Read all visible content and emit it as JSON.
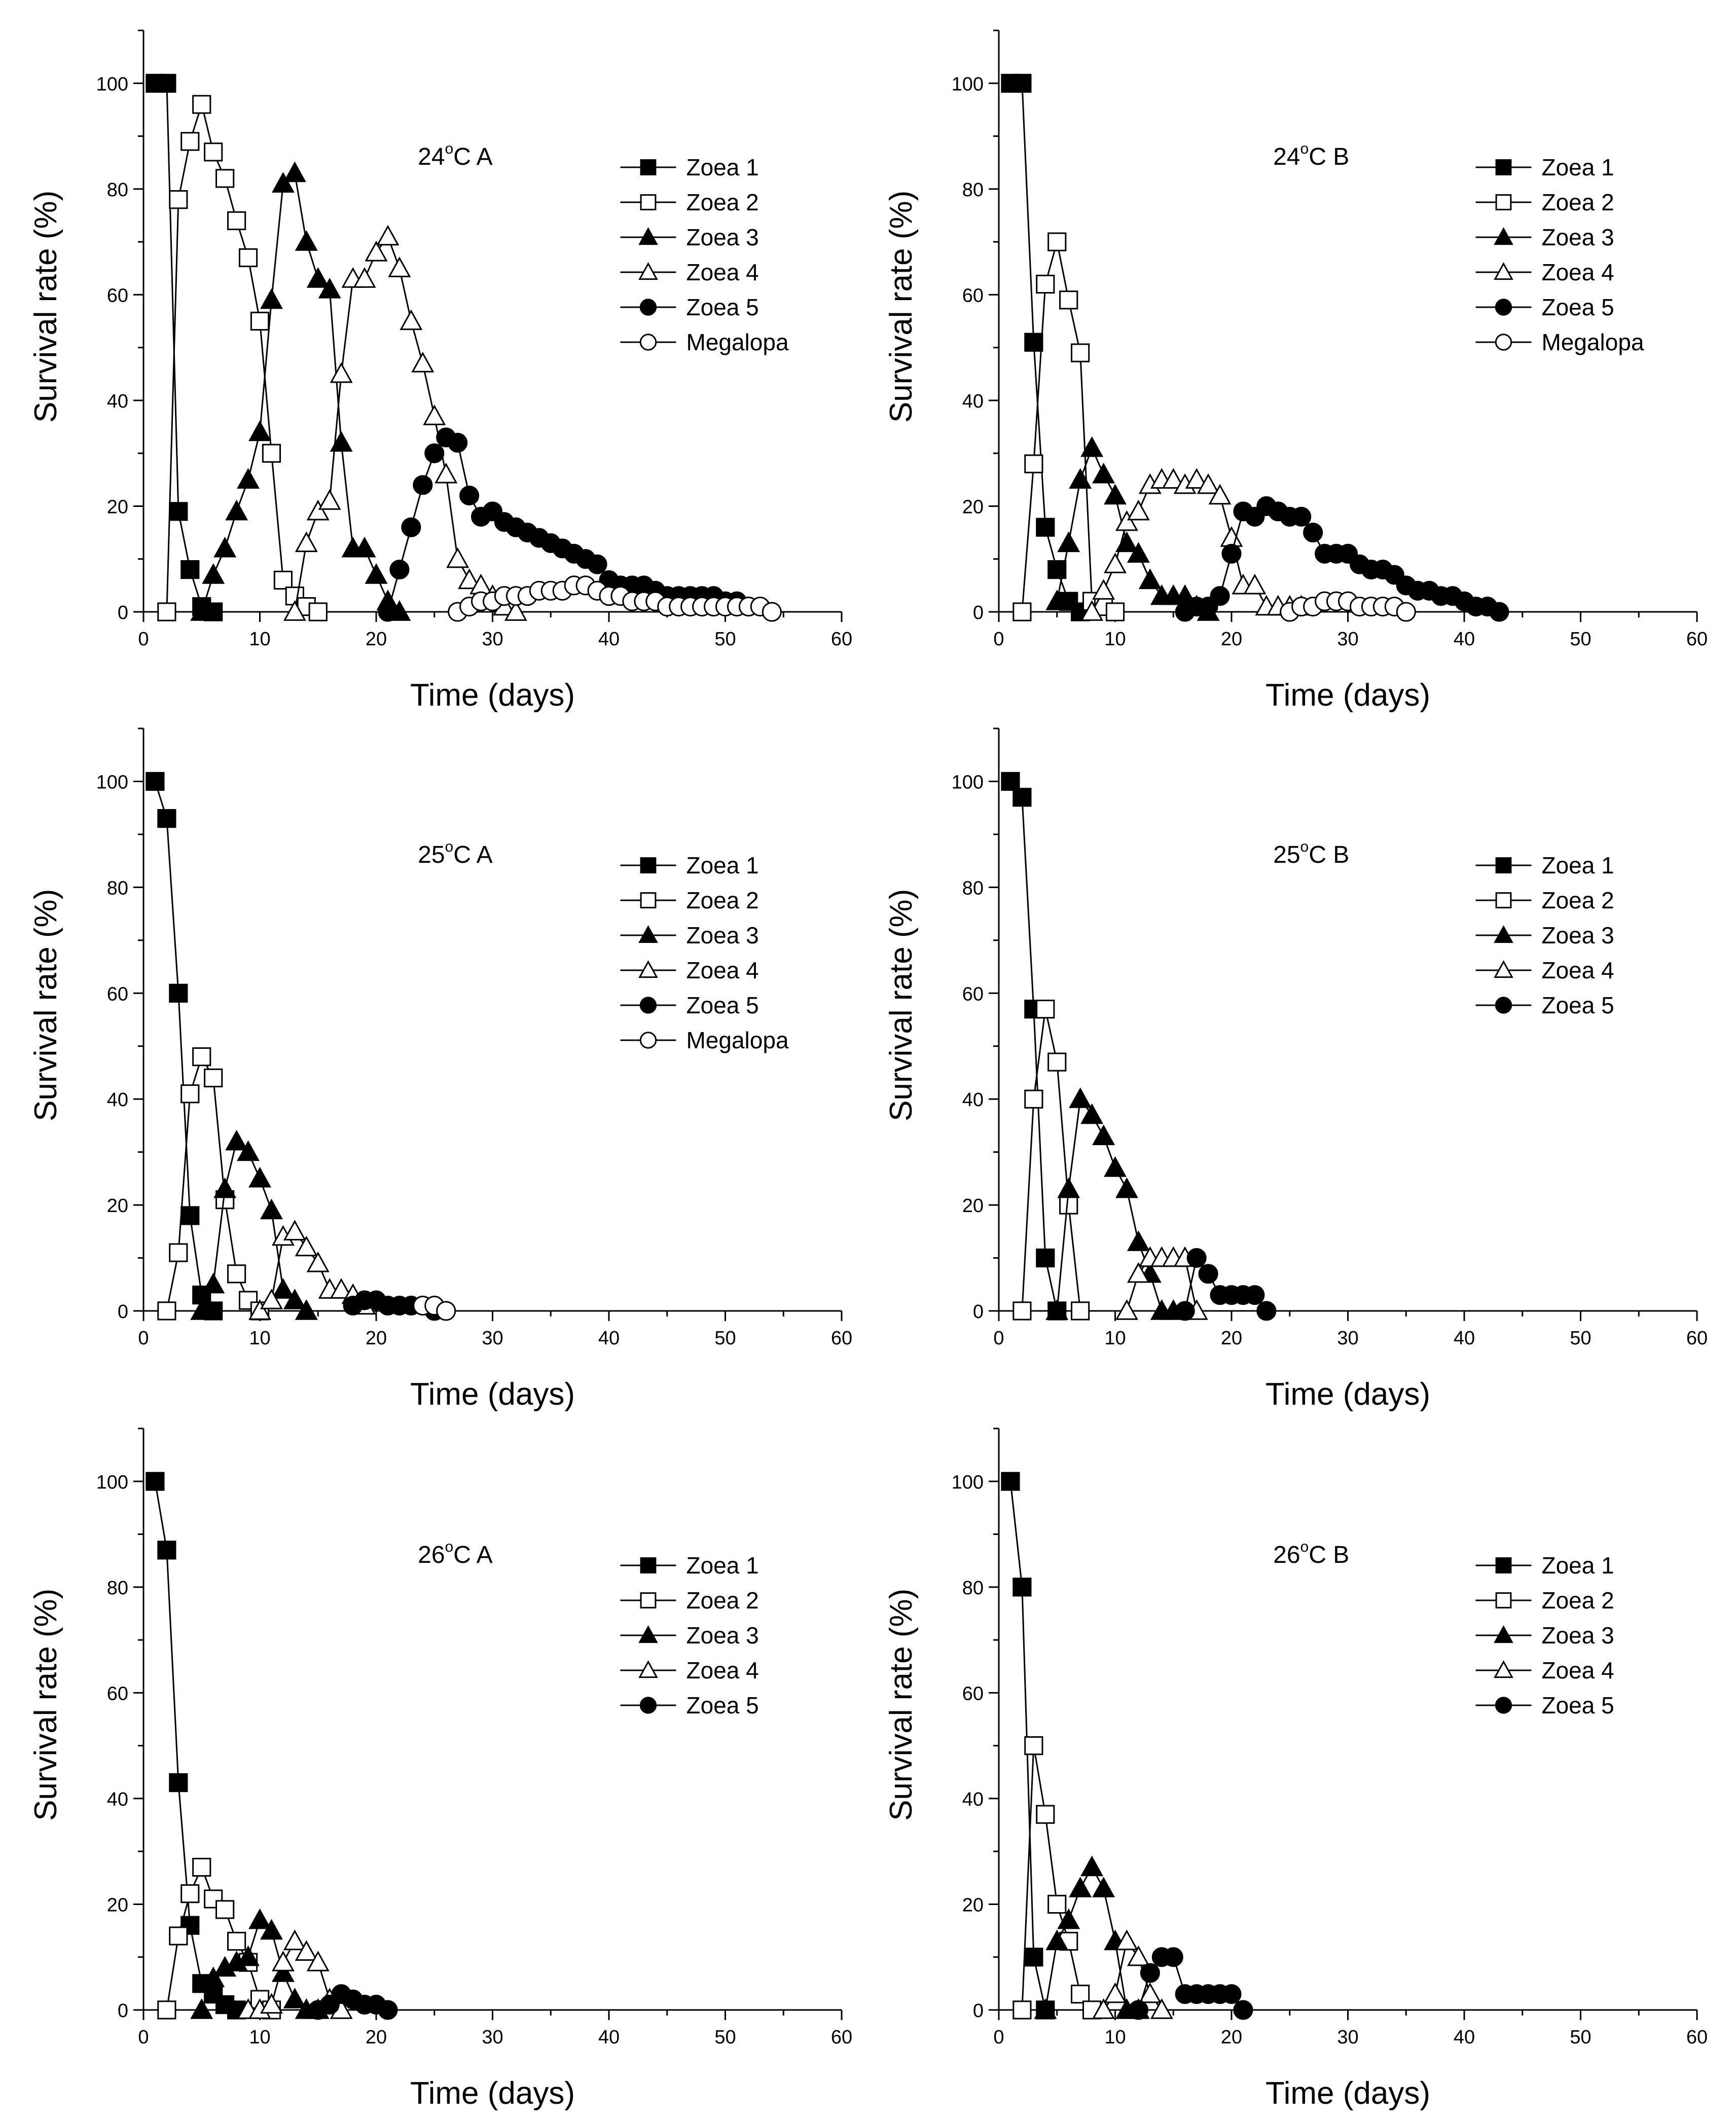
{
  "figure": {
    "x_label": "Time  (days)",
    "y_label": "Survival rate (%)"
  },
  "chart_data": [
    {
      "type": "line",
      "panel_label": {
        "temp": "24",
        "degree": "o",
        "suffix": "C A"
      },
      "title": "24°C A",
      "xlabel": "Time  (days)",
      "ylabel": "Survival rate (%)",
      "xlim": [
        0,
        60
      ],
      "ylim": [
        0,
        110
      ],
      "xticks": [
        0,
        10,
        20,
        30,
        40,
        50,
        60
      ],
      "yticks": [
        0,
        20,
        40,
        60,
        80,
        100
      ],
      "legend_position": "top-right",
      "series": [
        {
          "name": "Zoea 1",
          "marker": "square-filled",
          "x": [
            1,
            2,
            3,
            4,
            5,
            6
          ],
          "y": [
            100,
            100,
            19,
            8,
            1,
            0
          ]
        },
        {
          "name": "Zoea 2",
          "marker": "square-open",
          "x": [
            2,
            3,
            4,
            5,
            6,
            7,
            8,
            9,
            10,
            11,
            12,
            13,
            14,
            15
          ],
          "y": [
            0,
            78,
            89,
            96,
            87,
            82,
            74,
            67,
            55,
            30,
            6,
            3,
            1,
            0
          ]
        },
        {
          "name": "Zoea 3",
          "marker": "triangle-filled",
          "x": [
            5,
            6,
            7,
            8,
            9,
            10,
            11,
            12,
            13,
            14,
            15,
            16,
            17,
            18,
            19,
            20,
            21,
            22
          ],
          "y": [
            0,
            7,
            12,
            19,
            25,
            34,
            59,
            81,
            83,
            70,
            63,
            61,
            32,
            12,
            12,
            7,
            2,
            0
          ]
        },
        {
          "name": "Zoea 4",
          "marker": "triangle-open",
          "x": [
            13,
            14,
            15,
            16,
            17,
            18,
            19,
            20,
            21,
            22,
            23,
            24,
            25,
            26,
            27,
            28,
            29,
            30,
            31,
            32
          ],
          "y": [
            0,
            13,
            19,
            21,
            45,
            63,
            63,
            68,
            71,
            65,
            55,
            47,
            37,
            26,
            10,
            6,
            5,
            3,
            1,
            0
          ]
        },
        {
          "name": "Zoea 5",
          "marker": "circle-filled",
          "x": [
            21,
            22,
            23,
            24,
            25,
            26,
            27,
            28,
            29,
            30,
            31,
            32,
            33,
            34,
            35,
            36,
            37,
            38,
            39,
            40,
            41,
            42,
            43,
            44,
            45,
            46,
            47,
            48,
            49,
            50,
            51,
            52
          ],
          "y": [
            0,
            8,
            16,
            24,
            30,
            33,
            32,
            22,
            18,
            19,
            17,
            16,
            15,
            14,
            13,
            12,
            11,
            10,
            9,
            6,
            5,
            5,
            5,
            4,
            3,
            3,
            3,
            3,
            3,
            2,
            2,
            1
          ]
        },
        {
          "name": "Megalopa",
          "marker": "circle-open",
          "x": [
            27,
            28,
            29,
            30,
            31,
            32,
            33,
            34,
            35,
            36,
            37,
            38,
            39,
            40,
            41,
            42,
            43,
            44,
            45,
            46,
            47,
            48,
            49,
            50,
            51,
            52,
            53,
            54
          ],
          "y": [
            0,
            1,
            2,
            2,
            3,
            3,
            3,
            4,
            4,
            4,
            5,
            5,
            4,
            3,
            3,
            2,
            2,
            2,
            1,
            1,
            1,
            1,
            1,
            1,
            1,
            1,
            1,
            0
          ]
        }
      ]
    },
    {
      "type": "line",
      "panel_label": {
        "temp": "24",
        "degree": "o",
        "suffix": "C B"
      },
      "title": "24°C B",
      "xlabel": "Time  (days)",
      "ylabel": "Survival rate (%)",
      "xlim": [
        0,
        60
      ],
      "ylim": [
        0,
        110
      ],
      "xticks": [
        0,
        10,
        20,
        30,
        40,
        50,
        60
      ],
      "yticks": [
        0,
        20,
        40,
        60,
        80,
        100
      ],
      "legend_position": "top-right",
      "series": [
        {
          "name": "Zoea 1",
          "marker": "square-filled",
          "x": [
            1,
            2,
            3,
            4,
            5,
            6,
            7
          ],
          "y": [
            100,
            100,
            51,
            16,
            8,
            2,
            0
          ]
        },
        {
          "name": "Zoea 2",
          "marker": "square-open",
          "x": [
            2,
            3,
            4,
            5,
            6,
            7,
            8,
            9,
            10
          ],
          "y": [
            0,
            28,
            62,
            70,
            59,
            49,
            2,
            1,
            0
          ]
        },
        {
          "name": "Zoea 3",
          "marker": "triangle-filled",
          "x": [
            5,
            6,
            7,
            8,
            9,
            10,
            11,
            12,
            13,
            14,
            15,
            16,
            17,
            18
          ],
          "y": [
            2,
            13,
            25,
            31,
            26,
            22,
            13,
            11,
            6,
            3,
            3,
            3,
            1,
            0
          ]
        },
        {
          "name": "Zoea 4",
          "marker": "triangle-open",
          "x": [
            8,
            9,
            10,
            11,
            12,
            13,
            14,
            15,
            16,
            17,
            18,
            19,
            20,
            21,
            22,
            23,
            24,
            25,
            26
          ],
          "y": [
            0,
            4,
            9,
            17,
            19,
            24,
            25,
            25,
            24,
            25,
            24,
            22,
            14,
            5,
            5,
            1,
            1,
            1,
            1
          ]
        },
        {
          "name": "Zoea 5",
          "marker": "circle-filled",
          "x": [
            16,
            17,
            18,
            19,
            20,
            21,
            22,
            23,
            24,
            25,
            26,
            27,
            28,
            29,
            30,
            31,
            32,
            33,
            34,
            35,
            36,
            37,
            38,
            39,
            40,
            41,
            42,
            43
          ],
          "y": [
            0,
            1,
            1,
            3,
            11,
            19,
            18,
            20,
            19,
            18,
            18,
            15,
            11,
            11,
            11,
            9,
            8,
            8,
            7,
            5,
            4,
            4,
            3,
            3,
            2,
            1,
            1,
            0
          ]
        },
        {
          "name": "Megalopa",
          "marker": "circle-open",
          "x": [
            25,
            26,
            27,
            28,
            29,
            30,
            31,
            32,
            33,
            34,
            35
          ],
          "y": [
            0,
            1,
            1,
            2,
            2,
            2,
            1,
            1,
            1,
            1,
            0
          ]
        }
      ]
    },
    {
      "type": "line",
      "panel_label": {
        "temp": "25",
        "degree": "o",
        "suffix": "C A"
      },
      "title": "25°C A",
      "xlabel": "Time  (days)",
      "ylabel": "Survival rate (%)",
      "xlim": [
        0,
        60
      ],
      "ylim": [
        0,
        110
      ],
      "xticks": [
        0,
        10,
        20,
        30,
        40,
        50,
        60
      ],
      "yticks": [
        0,
        20,
        40,
        60,
        80,
        100
      ],
      "legend_position": "top-right",
      "series": [
        {
          "name": "Zoea 1",
          "marker": "square-filled",
          "x": [
            1,
            2,
            3,
            4,
            5,
            6
          ],
          "y": [
            100,
            93,
            60,
            18,
            3,
            0
          ]
        },
        {
          "name": "Zoea 2",
          "marker": "square-open",
          "x": [
            2,
            3,
            4,
            5,
            6,
            7,
            8,
            9,
            10
          ],
          "y": [
            0,
            11,
            41,
            48,
            44,
            21,
            7,
            2,
            0
          ]
        },
        {
          "name": "Zoea 3",
          "marker": "triangle-filled",
          "x": [
            5,
            6,
            7,
            8,
            9,
            10,
            11,
            12,
            13,
            14
          ],
          "y": [
            0,
            5,
            23,
            32,
            30,
            25,
            19,
            4,
            2,
            0
          ]
        },
        {
          "name": "Zoea 4",
          "marker": "triangle-open",
          "x": [
            10,
            11,
            12,
            13,
            14,
            15,
            16,
            17,
            18,
            19
          ],
          "y": [
            0,
            2,
            14,
            15,
            12,
            9,
            4,
            4,
            3,
            1
          ]
        },
        {
          "name": "Zoea 5",
          "marker": "circle-filled",
          "x": [
            18,
            19,
            20,
            21,
            22,
            23,
            24,
            25
          ],
          "y": [
            1,
            2,
            2,
            1,
            1,
            1,
            1,
            0
          ]
        },
        {
          "name": "Megalopa",
          "marker": "circle-open",
          "x": [
            24,
            25,
            26
          ],
          "y": [
            1,
            1,
            0
          ]
        }
      ]
    },
    {
      "type": "line",
      "panel_label": {
        "temp": "25",
        "degree": "o",
        "suffix": "C B"
      },
      "title": "25°C B",
      "xlabel": "Time  (days)",
      "ylabel": "Survival rate (%)",
      "xlim": [
        0,
        60
      ],
      "ylim": [
        0,
        110
      ],
      "xticks": [
        0,
        10,
        20,
        30,
        40,
        50,
        60
      ],
      "yticks": [
        0,
        20,
        40,
        60,
        80,
        100
      ],
      "legend_position": "top-right",
      "series": [
        {
          "name": "Zoea 1",
          "marker": "square-filled",
          "x": [
            1,
            2,
            3,
            4,
            5
          ],
          "y": [
            100,
            97,
            57,
            10,
            0
          ]
        },
        {
          "name": "Zoea 2",
          "marker": "square-open",
          "x": [
            2,
            3,
            4,
            5,
            6,
            7
          ],
          "y": [
            0,
            40,
            57,
            47,
            20,
            0
          ]
        },
        {
          "name": "Zoea 3",
          "marker": "triangle-filled",
          "x": [
            5,
            6,
            7,
            8,
            9,
            10,
            11,
            12,
            13,
            14,
            15
          ],
          "y": [
            0,
            23,
            40,
            37,
            33,
            27,
            23,
            13,
            7,
            0,
            0
          ]
        },
        {
          "name": "Zoea 4",
          "marker": "triangle-open",
          "x": [
            11,
            12,
            13,
            14,
            15,
            16,
            17
          ],
          "y": [
            0,
            7,
            10,
            10,
            10,
            10,
            0
          ]
        },
        {
          "name": "Zoea 5",
          "marker": "circle-filled",
          "x": [
            16,
            17,
            18,
            19,
            20,
            21,
            22,
            23
          ],
          "y": [
            0,
            10,
            7,
            3,
            3,
            3,
            3,
            0
          ]
        }
      ]
    },
    {
      "type": "line",
      "panel_label": {
        "temp": "26",
        "degree": "o",
        "suffix": "C A"
      },
      "title": "26°C A",
      "xlabel": "Time  (days)",
      "ylabel": "Survival rate (%)",
      "xlim": [
        0,
        60
      ],
      "ylim": [
        0,
        110
      ],
      "xticks": [
        0,
        10,
        20,
        30,
        40,
        50,
        60
      ],
      "yticks": [
        0,
        20,
        40,
        60,
        80,
        100
      ],
      "legend_position": "top-right",
      "series": [
        {
          "name": "Zoea 1",
          "marker": "square-filled",
          "x": [
            1,
            2,
            3,
            4,
            5,
            6,
            7,
            8
          ],
          "y": [
            100,
            87,
            43,
            16,
            5,
            3,
            1,
            0
          ]
        },
        {
          "name": "Zoea 2",
          "marker": "square-open",
          "x": [
            2,
            3,
            4,
            5,
            6,
            7,
            8,
            9,
            10,
            11
          ],
          "y": [
            0,
            14,
            22,
            27,
            21,
            19,
            13,
            9,
            2,
            0
          ]
        },
        {
          "name": "Zoea 3",
          "marker": "triangle-filled",
          "x": [
            5,
            6,
            7,
            8,
            9,
            10,
            11,
            12,
            13,
            14,
            15
          ],
          "y": [
            0,
            6,
            8,
            9,
            10,
            17,
            15,
            7,
            2,
            0,
            0
          ]
        },
        {
          "name": "Zoea 4",
          "marker": "triangle-open",
          "x": [
            9,
            10,
            11,
            12,
            13,
            14,
            15,
            16,
            17
          ],
          "y": [
            0,
            0,
            1,
            9,
            13,
            11,
            9,
            2,
            0
          ]
        },
        {
          "name": "Zoea 5",
          "marker": "circle-filled",
          "x": [
            15,
            16,
            17,
            18,
            19,
            20,
            21
          ],
          "y": [
            0,
            1,
            3,
            2,
            1,
            1,
            0
          ]
        }
      ]
    },
    {
      "type": "line",
      "panel_label": {
        "temp": "26",
        "degree": "o",
        "suffix": "C B"
      },
      "title": "26°C B",
      "xlabel": "Time  (days)",
      "ylabel": "Survival rate (%)",
      "xlim": [
        0,
        60
      ],
      "ylim": [
        0,
        110
      ],
      "xticks": [
        0,
        10,
        20,
        30,
        40,
        50,
        60
      ],
      "yticks": [
        0,
        20,
        40,
        60,
        80,
        100
      ],
      "legend_position": "top-right",
      "series": [
        {
          "name": "Zoea 1",
          "marker": "square-filled",
          "x": [
            1,
            2,
            3,
            4
          ],
          "y": [
            100,
            80,
            10,
            0
          ]
        },
        {
          "name": "Zoea 2",
          "marker": "square-open",
          "x": [
            2,
            3,
            4,
            5,
            6,
            7,
            8
          ],
          "y": [
            0,
            50,
            37,
            20,
            13,
            3,
            0
          ]
        },
        {
          "name": "Zoea 3",
          "marker": "triangle-filled",
          "x": [
            4,
            5,
            6,
            7,
            8,
            9,
            10,
            11,
            12
          ],
          "y": [
            0,
            13,
            17,
            23,
            27,
            23,
            13,
            0,
            0
          ]
        },
        {
          "name": "Zoea 4",
          "marker": "triangle-open",
          "x": [
            9,
            10,
            11,
            12,
            13,
            14
          ],
          "y": [
            0,
            3,
            13,
            10,
            3,
            0
          ]
        },
        {
          "name": "Zoea 5",
          "marker": "circle-filled",
          "x": [
            12,
            13,
            14,
            15,
            16,
            17,
            18,
            19,
            20,
            21
          ],
          "y": [
            0,
            7,
            10,
            10,
            3,
            3,
            3,
            3,
            3,
            0
          ]
        }
      ]
    }
  ]
}
